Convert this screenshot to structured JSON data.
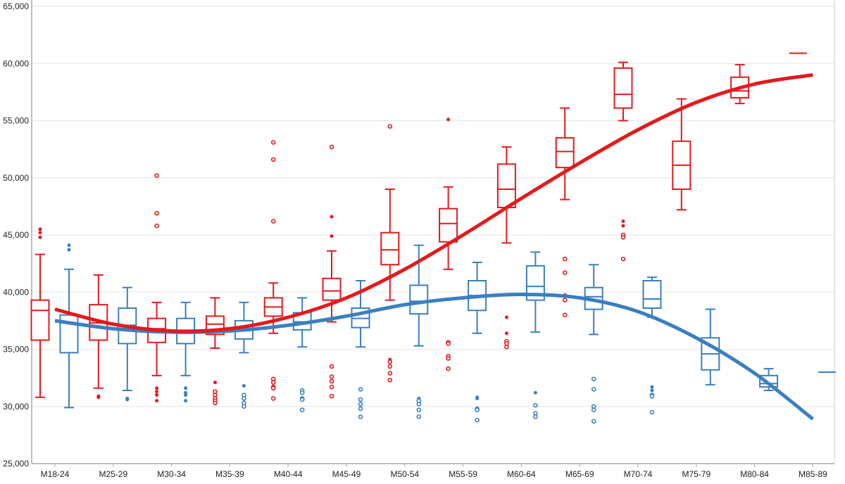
{
  "chart_data": {
    "type": "box",
    "title": "",
    "xlabel": "",
    "ylabel": "",
    "ylim": [
      25000,
      65000
    ],
    "yticks": [
      25000,
      30000,
      35000,
      40000,
      45000,
      50000,
      55000,
      60000,
      65000
    ],
    "ytick_labels": [
      "25,000",
      "30,000",
      "35,000",
      "40,000",
      "45,000",
      "50,000",
      "55,000",
      "60,000",
      "65,000"
    ],
    "grid": "horizontal",
    "categories": [
      "M18-24",
      "M25-29",
      "M30-34",
      "M35-39",
      "M40-44",
      "M45-49",
      "M50-54",
      "M55-59",
      "M60-64",
      "M65-69",
      "M70-74",
      "M75-79",
      "M80-84",
      "M85-89"
    ],
    "series": [
      {
        "color": "#e31a1c",
        "boxes": [
          {
            "low": 30800,
            "q1": 35800,
            "median": 38400,
            "q3": 39300,
            "high": 43300,
            "outliers": [
              45500,
              45200,
              44800
            ]
          },
          {
            "low": 31600,
            "q1": 35800,
            "median": 37300,
            "q3": 38900,
            "high": 41500,
            "outliers": [
              30900,
              30800
            ]
          },
          {
            "low": 32700,
            "q1": 35600,
            "median": 36800,
            "q3": 37700,
            "high": 39100,
            "outliers": [
              50200,
              46900,
              45800,
              31600,
              31300,
              31000,
              30500
            ]
          },
          {
            "low": 35100,
            "q1": 36300,
            "median": 37200,
            "q3": 37900,
            "high": 39500,
            "outliers": [
              32100,
              31300,
              31000,
              30700,
              30500,
              30300
            ]
          },
          {
            "low": 36400,
            "q1": 37900,
            "median": 38700,
            "q3": 39500,
            "high": 40800,
            "outliers": [
              53100,
              51600,
              46200,
              32400,
              32100,
              31700,
              31600,
              30700
            ]
          },
          {
            "low": 37400,
            "q1": 39300,
            "median": 40100,
            "q3": 41200,
            "high": 43600,
            "outliers": [
              52700,
              46600,
              44900,
              33500,
              32600,
              32200,
              31700,
              30900
            ]
          },
          {
            "low": 39300,
            "q1": 42400,
            "median": 43700,
            "q3": 45200,
            "high": 49000,
            "outliers": [
              54500,
              34100,
              33900,
              33500,
              32900,
              32300
            ]
          },
          {
            "low": 42000,
            "q1": 44400,
            "median": 46000,
            "q3": 47300,
            "high": 49200,
            "outliers": [
              55100,
              35600,
              35500,
              34400,
              34200,
              33300
            ]
          },
          {
            "low": 44300,
            "q1": 47400,
            "median": 49000,
            "q3": 51200,
            "high": 52700,
            "outliers": [
              37800,
              36400,
              35700,
              35500,
              35200
            ]
          },
          {
            "low": 48100,
            "q1": 50900,
            "median": 52300,
            "q3": 53500,
            "high": 56100,
            "outliers": [
              42900,
              41700,
              39700,
              39300,
              38000
            ]
          },
          {
            "low": 55000,
            "q1": 56100,
            "median": 57300,
            "q3": 59600,
            "high": 60100,
            "outliers": [
              46200,
              45800,
              45000,
              44800,
              42900
            ]
          },
          {
            "low": 47200,
            "q1": 49000,
            "median": 51100,
            "q3": 53200,
            "high": 56900,
            "outliers": []
          },
          {
            "low": 56500,
            "q1": 57000,
            "median": 57600,
            "q3": 58800,
            "high": 59900,
            "outliers": []
          },
          {
            "low": 60900,
            "q1": 60900,
            "median": 60900,
            "q3": 60900,
            "high": 60900,
            "outliers": []
          }
        ],
        "trend": [
          38500,
          37200,
          36600,
          36800,
          37800,
          39500,
          42000,
          45000,
          48200,
          51300,
          54200,
          56600,
          58200,
          59000
        ]
      },
      {
        "color": "#3a7fc1",
        "boxes": [
          {
            "low": 29900,
            "q1": 34700,
            "median": 37300,
            "q3": 38000,
            "high": 42000,
            "outliers": [
              44100,
              43700
            ]
          },
          {
            "low": 31400,
            "q1": 35500,
            "median": 37100,
            "q3": 38600,
            "high": 40400,
            "outliers": [
              30700,
              30600
            ]
          },
          {
            "low": 32700,
            "q1": 35500,
            "median": 36400,
            "q3": 37700,
            "high": 39100,
            "outliers": [
              31600,
              31200,
              31000,
              30500
            ]
          },
          {
            "low": 34700,
            "q1": 35900,
            "median": 36800,
            "q3": 37500,
            "high": 39100,
            "outliers": [
              31800,
              31000,
              30700,
              30300,
              30000
            ]
          },
          {
            "low": 35200,
            "q1": 36700,
            "median": 37400,
            "q3": 38200,
            "high": 39500,
            "outliers": [
              31400,
              31200,
              30700,
              30600,
              29700
            ]
          },
          {
            "low": 35200,
            "q1": 36900,
            "median": 37700,
            "q3": 38600,
            "high": 41000,
            "outliers": [
              31500,
              30600,
              30200,
              29800,
              29100
            ]
          },
          {
            "low": 35300,
            "q1": 38100,
            "median": 39200,
            "q3": 40600,
            "high": 44100,
            "outliers": [
              30700,
              30500,
              30200,
              29700,
              29100
            ]
          },
          {
            "low": 36400,
            "q1": 38400,
            "median": 39700,
            "q3": 41000,
            "high": 42600,
            "outliers": [
              30800,
              30700,
              29800,
              29700,
              28800
            ]
          },
          {
            "low": 36500,
            "q1": 39300,
            "median": 40500,
            "q3": 42300,
            "high": 43500,
            "outliers": [
              31200,
              30100,
              29400,
              29100
            ]
          },
          {
            "low": 36300,
            "q1": 38500,
            "median": 39600,
            "q3": 40400,
            "high": 42400,
            "outliers": [
              32400,
              31500,
              30000,
              29700,
              28700
            ]
          },
          {
            "low": 37800,
            "q1": 38600,
            "median": 39400,
            "q3": 41000,
            "high": 41300,
            "outliers": [
              31700,
              31400,
              31000,
              30900,
              29500
            ]
          },
          {
            "low": 31900,
            "q1": 33200,
            "median": 34600,
            "q3": 36000,
            "high": 38500,
            "outliers": []
          },
          {
            "low": 31400,
            "q1": 31700,
            "median": 32000,
            "q3": 32700,
            "high": 33300,
            "outliers": []
          },
          {
            "low": 33000,
            "q1": 33000,
            "median": 33000,
            "q3": 33000,
            "high": 33000,
            "outliers": []
          }
        ],
        "trend": [
          37500,
          36800,
          36500,
          36600,
          37100,
          37900,
          38900,
          39500,
          39800,
          39500,
          38300,
          36000,
          32900,
          28900
        ]
      }
    ]
  }
}
